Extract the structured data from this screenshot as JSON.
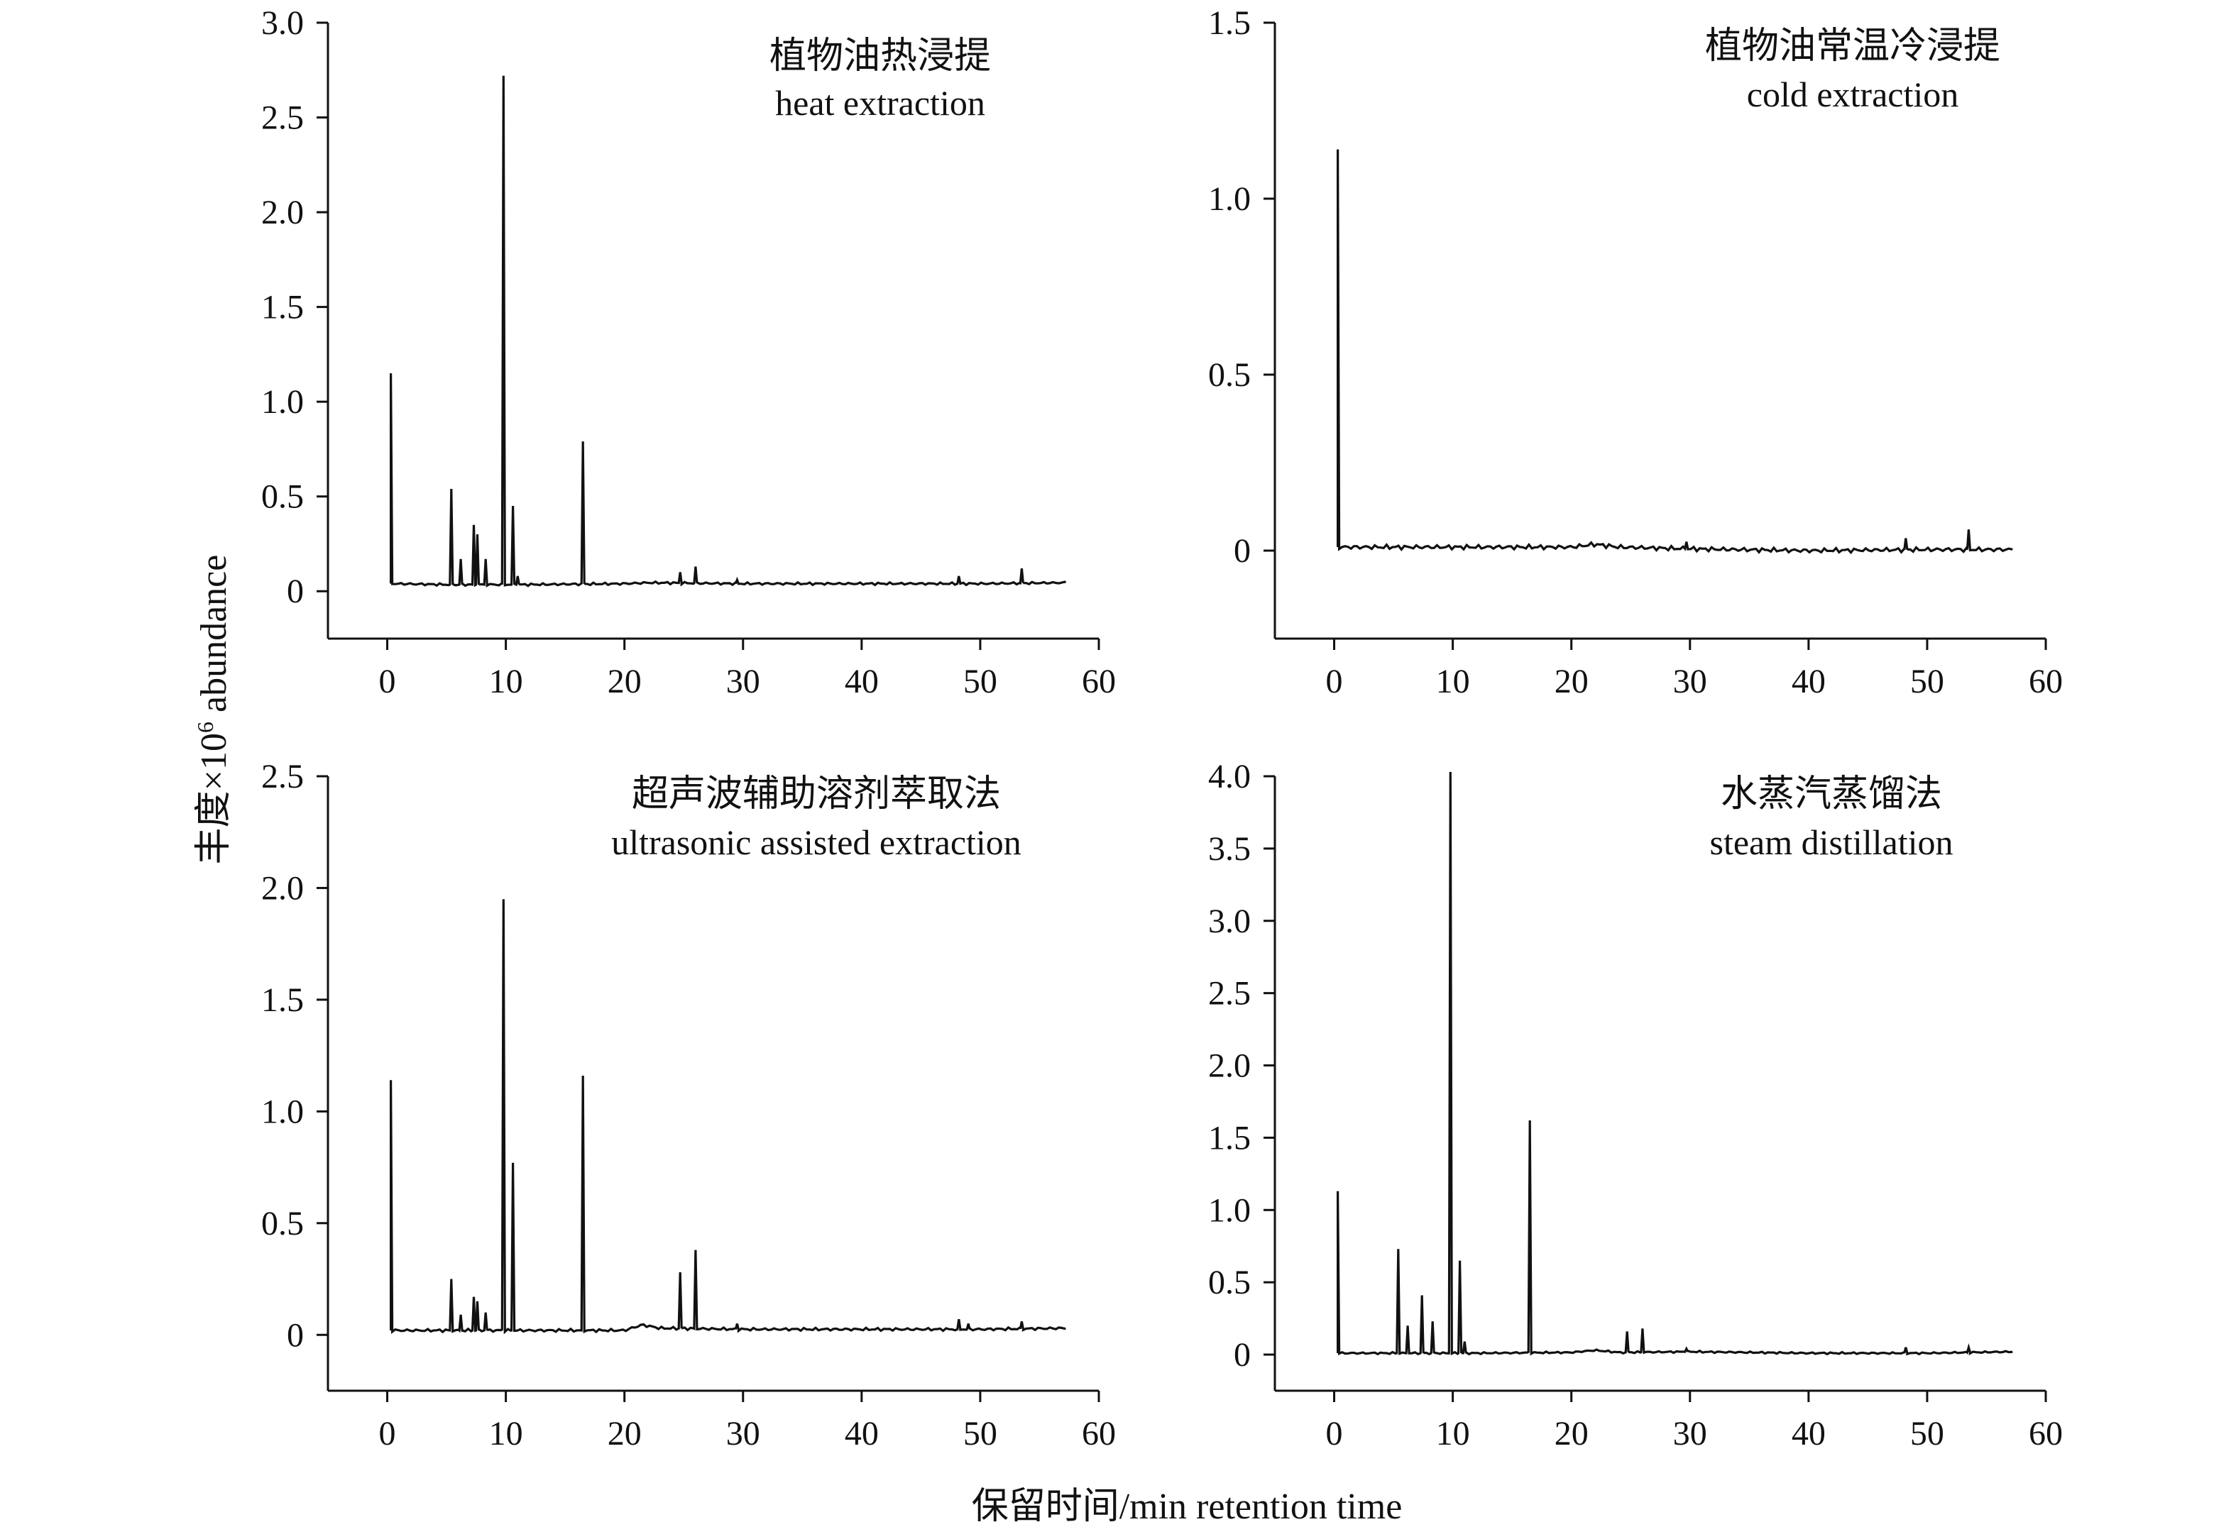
{
  "figure": {
    "ylabel_prefix": "丰度×10",
    "ylabel_sup": "6",
    "ylabel_suffix": " abundance",
    "xlabel": "保留时间/min retention time"
  },
  "chart_data": [
    {
      "type": "line",
      "title": "植物油热浸提",
      "subtitle": "heat extraction",
      "xlim": [
        -5,
        60
      ],
      "ylim": [
        -0.25,
        3.0
      ],
      "xticks": [
        0,
        10,
        20,
        30,
        40,
        50,
        60
      ],
      "yticks": [
        0,
        0.5,
        1.0,
        1.5,
        2.0,
        2.5,
        3.0
      ],
      "ytick_labels": [
        "0",
        "0.5",
        "1.0",
        "1.5",
        "2.0",
        "2.5",
        "3.0"
      ],
      "grid": false,
      "baseline": [
        [
          0.3,
          0.04
        ],
        [
          5,
          0.035
        ],
        [
          12,
          0.035
        ],
        [
          20,
          0.04
        ],
        [
          22,
          0.045
        ],
        [
          30,
          0.04
        ],
        [
          40,
          0.04
        ],
        [
          50,
          0.04
        ],
        [
          57.2,
          0.045
        ]
      ],
      "peaks": [
        [
          0.3,
          1.15
        ],
        [
          5.4,
          0.54
        ],
        [
          6.2,
          0.17
        ],
        [
          7.3,
          0.35
        ],
        [
          7.6,
          0.3
        ],
        [
          8.3,
          0.17
        ],
        [
          9.8,
          2.72
        ],
        [
          10.6,
          0.45
        ],
        [
          11.0,
          0.08
        ],
        [
          16.5,
          0.79
        ],
        [
          24.7,
          0.1
        ],
        [
          26.0,
          0.13
        ],
        [
          29.5,
          0.06
        ],
        [
          48.2,
          0.08
        ],
        [
          53.5,
          0.12
        ]
      ]
    },
    {
      "type": "line",
      "title": "植物油常温冷浸提",
      "subtitle": "cold extraction",
      "xlim": [
        -5,
        60
      ],
      "ylim": [
        -0.25,
        1.5
      ],
      "xticks": [
        0,
        10,
        20,
        30,
        40,
        50,
        60
      ],
      "yticks": [
        0,
        0.5,
        1.0,
        1.5
      ],
      "ytick_labels": [
        "0",
        "0.5",
        "1.0",
        "1.5"
      ],
      "grid": false,
      "baseline": [
        [
          0.3,
          0.01
        ],
        [
          5,
          0.01
        ],
        [
          10,
          0.01
        ],
        [
          20,
          0.01
        ],
        [
          22,
          0.018
        ],
        [
          24,
          0.01
        ],
        [
          30,
          0.005
        ],
        [
          40,
          0.0
        ],
        [
          50,
          0.003
        ],
        [
          57.2,
          0.003
        ]
      ],
      "peaks": [
        [
          0.3,
          1.14
        ],
        [
          29.7,
          0.025
        ],
        [
          48.2,
          0.035
        ],
        [
          53.5,
          0.06
        ]
      ]
    },
    {
      "type": "line",
      "title": "超声波辅助溶剂萃取法",
      "subtitle": "ultrasonic assisted extraction",
      "xlim": [
        -5,
        60
      ],
      "ylim": [
        -0.25,
        2.5
      ],
      "xticks": [
        0,
        10,
        20,
        30,
        40,
        50,
        60
      ],
      "yticks": [
        0,
        0.5,
        1.0,
        1.5,
        2.0,
        2.5
      ],
      "ytick_labels": [
        "0",
        "0.5",
        "1.0",
        "1.5",
        "2.0",
        "2.5"
      ],
      "grid": false,
      "baseline": [
        [
          0.3,
          0.02
        ],
        [
          5,
          0.02
        ],
        [
          12,
          0.02
        ],
        [
          20,
          0.02
        ],
        [
          21.5,
          0.045
        ],
        [
          23,
          0.03
        ],
        [
          30,
          0.025
        ],
        [
          40,
          0.025
        ],
        [
          50,
          0.025
        ],
        [
          57.2,
          0.03
        ]
      ],
      "peaks": [
        [
          0.3,
          1.14
        ],
        [
          5.4,
          0.25
        ],
        [
          6.2,
          0.09
        ],
        [
          7.3,
          0.17
        ],
        [
          7.6,
          0.15
        ],
        [
          8.3,
          0.1
        ],
        [
          9.8,
          1.95
        ],
        [
          10.6,
          0.77
        ],
        [
          16.5,
          1.16
        ],
        [
          24.7,
          0.28
        ],
        [
          26.0,
          0.38
        ],
        [
          29.5,
          0.05
        ],
        [
          48.2,
          0.07
        ],
        [
          49.0,
          0.05
        ],
        [
          53.5,
          0.06
        ]
      ]
    },
    {
      "type": "line",
      "title": "水蒸汽蒸馏法",
      "subtitle": "steam distillation",
      "xlim": [
        -5,
        60
      ],
      "ylim": [
        -0.25,
        4.0
      ],
      "xticks": [
        0,
        10,
        20,
        30,
        40,
        50,
        60
      ],
      "yticks": [
        0,
        0.5,
        1.0,
        1.5,
        2.0,
        2.5,
        3.0,
        3.5,
        4.0
      ],
      "ytick_labels": [
        "0",
        "0.5",
        "1.0",
        "1.5",
        "2.0",
        "2.5",
        "3.0",
        "3.5",
        "4.0"
      ],
      "grid": false,
      "baseline": [
        [
          0.3,
          0.01
        ],
        [
          5,
          0.01
        ],
        [
          12,
          0.01
        ],
        [
          20,
          0.015
        ],
        [
          22,
          0.03
        ],
        [
          24,
          0.015
        ],
        [
          30,
          0.02
        ],
        [
          40,
          0.01
        ],
        [
          50,
          0.01
        ],
        [
          57.2,
          0.02
        ]
      ],
      "peaks": [
        [
          0.3,
          1.13
        ],
        [
          5.4,
          0.73
        ],
        [
          6.2,
          0.2
        ],
        [
          7.4,
          0.41
        ],
        [
          8.3,
          0.23
        ],
        [
          9.8,
          4.03
        ],
        [
          10.6,
          0.65
        ],
        [
          11.0,
          0.09
        ],
        [
          16.5,
          1.62
        ],
        [
          24.7,
          0.16
        ],
        [
          26.0,
          0.18
        ],
        [
          29.7,
          0.04
        ],
        [
          48.2,
          0.05
        ],
        [
          53.5,
          0.05
        ]
      ]
    }
  ]
}
